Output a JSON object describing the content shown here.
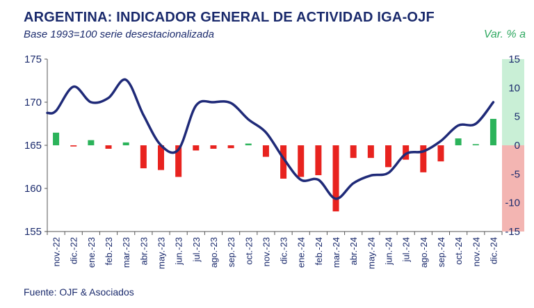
{
  "title": "ARGENTINA: INDICADOR GENERAL DE ACTIVIDAD IGA-OJF",
  "subtitle": "Base 1993=100 serie desestacionalizada",
  "right_axis_label": "Var. % a",
  "source": "Fuente: OJF & Asociados",
  "colors": {
    "line": "#1f2a78",
    "bar_positive": "#2bb35a",
    "bar_negative": "#e8231f",
    "right_panel_positive": "#c9efd6",
    "right_panel_negative": "#f3b5b2",
    "text": "#1a2a6c"
  },
  "chart_data": {
    "type": "bar+line",
    "categories": [
      "nov.-22",
      "dic.-22",
      "ene.-23",
      "feb.-23",
      "mar.-23",
      "abr.-23",
      "may.-23",
      "jun.-23",
      "jul.-23",
      "ago.-23",
      "sep.-23",
      "oct.-23",
      "nov.-23",
      "dic.-23",
      "ene.-24",
      "feb.-24",
      "mar.-24",
      "abr.-24",
      "may.-24",
      "jun.-24",
      "jul.-24",
      "ago.-24",
      "sep.-24",
      "oct.-24",
      "nov.-24",
      "dic.-24"
    ],
    "left_axis": {
      "ylim": [
        155,
        175
      ],
      "ticks": [
        155,
        160,
        165,
        170,
        175
      ]
    },
    "right_axis": {
      "ylim": [
        -15,
        15
      ],
      "ticks": [
        -15,
        -10,
        -5,
        0,
        5,
        10,
        15
      ]
    },
    "series": [
      {
        "axis": "left",
        "type": "line",
        "values": [
          169.0,
          171.8,
          170.0,
          170.5,
          172.6,
          168.5,
          165.0,
          164.5,
          169.6,
          170.0,
          169.9,
          168.0,
          166.5,
          163.5,
          161.0,
          161.0,
          158.8,
          160.6,
          161.5,
          161.8,
          164.0,
          164.3,
          165.5,
          167.3,
          167.5,
          170.0
        ]
      },
      {
        "axis": "right",
        "type": "bar",
        "values": [
          2.2,
          -0.2,
          0.9,
          -0.6,
          0.5,
          -4.0,
          -4.3,
          -5.5,
          -0.9,
          -0.6,
          -0.5,
          0.3,
          -2.0,
          -5.8,
          -5.5,
          -5.2,
          -11.5,
          -2.2,
          -2.2,
          -3.8,
          -2.5,
          -4.7,
          -2.8,
          1.2,
          0.2,
          4.6
        ]
      }
    ],
    "xlabel": "",
    "ylabel": ""
  }
}
